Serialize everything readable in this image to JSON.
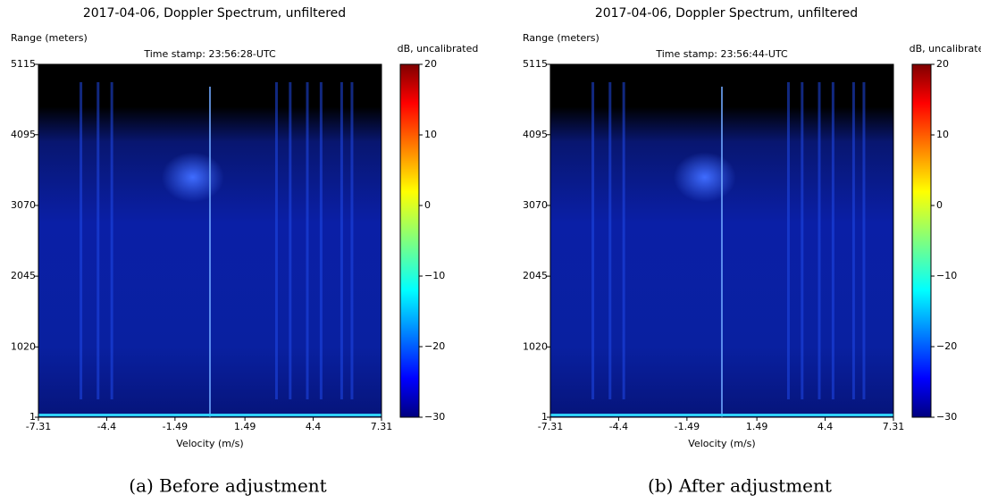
{
  "chart_data": [
    {
      "type": "heatmap",
      "title": "2017-04-06, Doppler Spectrum, unfiltered",
      "subtitle": "Time stamp: 23:56:28-UTC",
      "xlabel": "Velocity (m/s)",
      "ylabel": "Range (meters)",
      "colorbar_label": "dB, uncalibrated",
      "colormap": "jet",
      "xlim": [
        -7.31,
        7.31
      ],
      "xticks": [
        -7.31,
        -4.4,
        -1.49,
        1.49,
        4.4,
        7.31
      ],
      "ylim": [
        1,
        5115
      ],
      "yticks": [
        1,
        1020,
        2045,
        3070,
        4095,
        5115
      ],
      "clim": [
        -30,
        20
      ],
      "cticks": [
        {
          "value": -30,
          "label": "−30"
        },
        {
          "value": -20,
          "label": "−20"
        },
        {
          "value": -10,
          "label": "−10"
        },
        0,
        10,
        20
      ],
      "caption": "(a) Before adjustment"
    },
    {
      "type": "heatmap",
      "title": "2017-04-06, Doppler Spectrum, unfiltered",
      "subtitle": "Time stamp: 23:56:44-UTC",
      "xlabel": "Velocity (m/s)",
      "ylabel": "Range (meters)",
      "colorbar_label": "dB, uncalibrated",
      "colormap": "jet",
      "xlim": [
        -7.31,
        7.31
      ],
      "xticks": [
        -7.31,
        -4.4,
        -1.49,
        1.49,
        4.4,
        7.31
      ],
      "ylim": [
        1,
        5115
      ],
      "yticks": [
        1,
        1020,
        2045,
        3070,
        4095,
        5115
      ],
      "clim": [
        -30,
        20
      ],
      "cticks": [
        {
          "value": -30,
          "label": "−30"
        },
        {
          "value": -20,
          "label": "−20"
        },
        {
          "value": -10,
          "label": "−10"
        },
        0,
        10,
        20
      ],
      "caption": "(b) After adjustment"
    }
  ]
}
